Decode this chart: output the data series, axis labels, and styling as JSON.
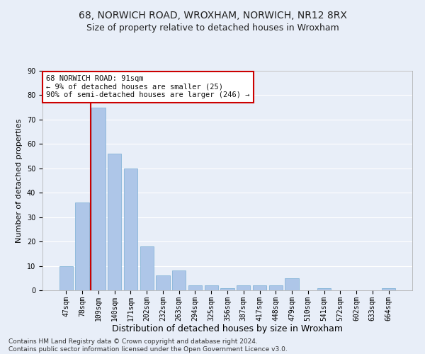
{
  "title_line1": "68, NORWICH ROAD, WROXHAM, NORWICH, NR12 8RX",
  "title_line2": "Size of property relative to detached houses in Wroxham",
  "xlabel": "Distribution of detached houses by size in Wroxham",
  "ylabel": "Number of detached properties",
  "categories": [
    "47sqm",
    "78sqm",
    "109sqm",
    "140sqm",
    "171sqm",
    "202sqm",
    "232sqm",
    "263sqm",
    "294sqm",
    "325sqm",
    "356sqm",
    "387sqm",
    "417sqm",
    "448sqm",
    "479sqm",
    "510sqm",
    "541sqm",
    "572sqm",
    "602sqm",
    "633sqm",
    "664sqm"
  ],
  "values": [
    10,
    36,
    75,
    56,
    50,
    18,
    6,
    8,
    2,
    2,
    1,
    2,
    2,
    2,
    5,
    0,
    1,
    0,
    0,
    0,
    1
  ],
  "bar_color": "#aec6e8",
  "bar_edge_color": "#7aafd4",
  "bg_color": "#e8eef8",
  "grid_color": "#ffffff",
  "vline_x": 1.5,
  "vline_color": "#cc0000",
  "annotation_line1": "68 NORWICH ROAD: 91sqm",
  "annotation_line2": "← 9% of detached houses are smaller (25)",
  "annotation_line3": "90% of semi-detached houses are larger (246) →",
  "annotation_box_color": "#cc0000",
  "annotation_box_bg": "#ffffff",
  "ylim": [
    0,
    90
  ],
  "yticks": [
    0,
    10,
    20,
    30,
    40,
    50,
    60,
    70,
    80,
    90
  ],
  "footer_line1": "Contains HM Land Registry data © Crown copyright and database right 2024.",
  "footer_line2": "Contains public sector information licensed under the Open Government Licence v3.0.",
  "title_fontsize": 10,
  "subtitle_fontsize": 9,
  "xlabel_fontsize": 9,
  "ylabel_fontsize": 8,
  "tick_fontsize": 7,
  "annotation_fontsize": 7.5,
  "footer_fontsize": 6.5
}
